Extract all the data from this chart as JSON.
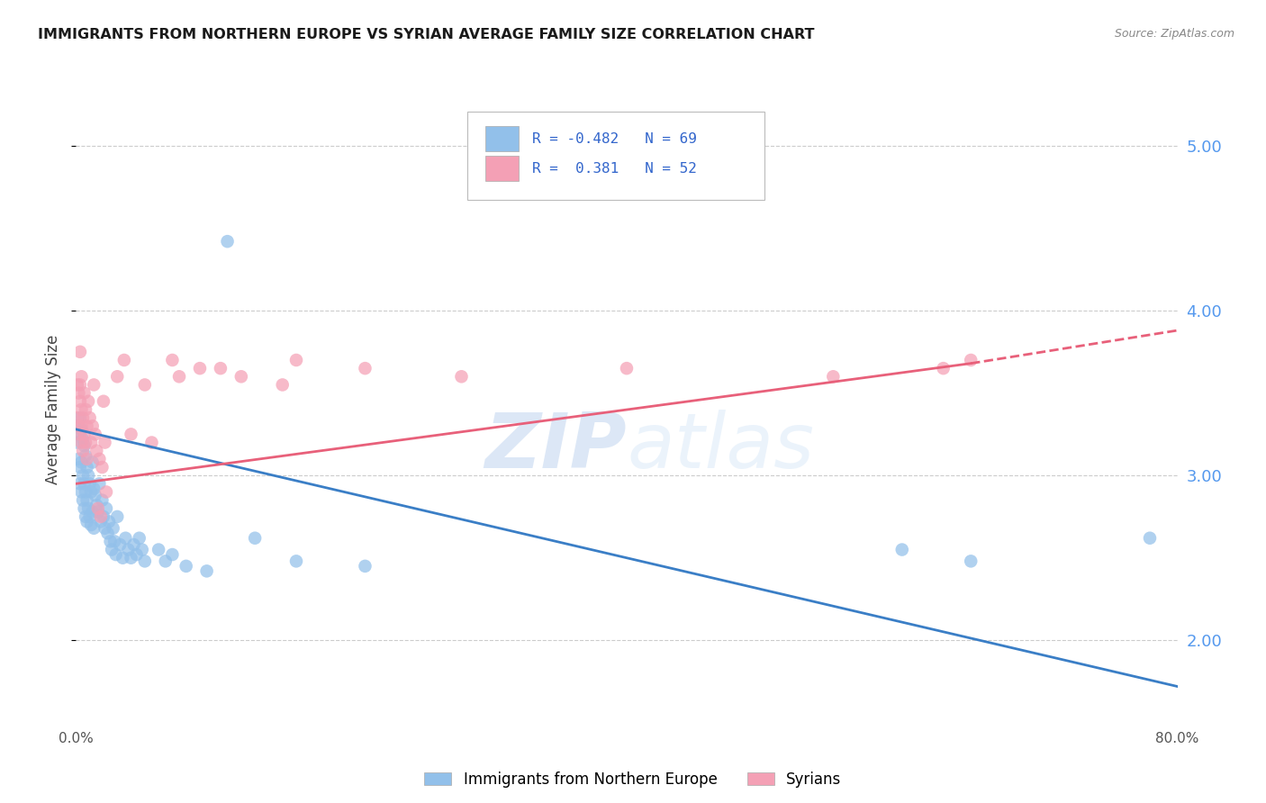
{
  "title": "IMMIGRANTS FROM NORTHERN EUROPE VS SYRIAN AVERAGE FAMILY SIZE CORRELATION CHART",
  "source": "Source: ZipAtlas.com",
  "ylabel": "Average Family Size",
  "xlim": [
    0.0,
    0.8
  ],
  "ylim": [
    1.5,
    5.3
  ],
  "yticks_right": [
    2.0,
    3.0,
    4.0,
    5.0
  ],
  "blue_color": "#92C0EA",
  "pink_color": "#F4A0B5",
  "blue_line_color": "#3A7EC6",
  "pink_line_color": "#E8607A",
  "watermark_zip": "ZIP",
  "watermark_atlas": "atlas",
  "blue_scatter": [
    [
      0.001,
      3.3
    ],
    [
      0.001,
      3.2
    ],
    [
      0.002,
      3.25
    ],
    [
      0.002,
      3.1
    ],
    [
      0.003,
      3.35
    ],
    [
      0.003,
      3.05
    ],
    [
      0.003,
      2.95
    ],
    [
      0.004,
      3.28
    ],
    [
      0.004,
      3.08
    ],
    [
      0.004,
      2.9
    ],
    [
      0.005,
      3.22
    ],
    [
      0.005,
      3.0
    ],
    [
      0.005,
      2.85
    ],
    [
      0.006,
      3.18
    ],
    [
      0.006,
      2.95
    ],
    [
      0.006,
      2.8
    ],
    [
      0.007,
      3.12
    ],
    [
      0.007,
      2.9
    ],
    [
      0.007,
      2.75
    ],
    [
      0.008,
      3.05
    ],
    [
      0.008,
      2.85
    ],
    [
      0.008,
      2.72
    ],
    [
      0.009,
      3.0
    ],
    [
      0.009,
      2.8
    ],
    [
      0.01,
      2.95
    ],
    [
      0.01,
      2.75
    ],
    [
      0.011,
      2.9
    ],
    [
      0.011,
      2.7
    ],
    [
      0.012,
      3.08
    ],
    [
      0.012,
      2.78
    ],
    [
      0.013,
      2.92
    ],
    [
      0.013,
      2.68
    ],
    [
      0.014,
      2.88
    ],
    [
      0.015,
      2.82
    ],
    [
      0.016,
      2.78
    ],
    [
      0.017,
      2.95
    ],
    [
      0.018,
      2.72
    ],
    [
      0.019,
      2.85
    ],
    [
      0.02,
      2.75
    ],
    [
      0.021,
      2.68
    ],
    [
      0.022,
      2.8
    ],
    [
      0.023,
      2.65
    ],
    [
      0.024,
      2.72
    ],
    [
      0.025,
      2.6
    ],
    [
      0.026,
      2.55
    ],
    [
      0.027,
      2.68
    ],
    [
      0.028,
      2.6
    ],
    [
      0.029,
      2.52
    ],
    [
      0.03,
      2.75
    ],
    [
      0.032,
      2.58
    ],
    [
      0.034,
      2.5
    ],
    [
      0.036,
      2.62
    ],
    [
      0.038,
      2.55
    ],
    [
      0.04,
      2.5
    ],
    [
      0.042,
      2.58
    ],
    [
      0.044,
      2.52
    ],
    [
      0.046,
      2.62
    ],
    [
      0.048,
      2.55
    ],
    [
      0.05,
      2.48
    ],
    [
      0.06,
      2.55
    ],
    [
      0.065,
      2.48
    ],
    [
      0.07,
      2.52
    ],
    [
      0.08,
      2.45
    ],
    [
      0.095,
      2.42
    ],
    [
      0.11,
      4.42
    ],
    [
      0.13,
      2.62
    ],
    [
      0.16,
      2.48
    ],
    [
      0.21,
      2.45
    ],
    [
      0.6,
      2.55
    ],
    [
      0.65,
      2.48
    ],
    [
      0.78,
      2.62
    ]
  ],
  "pink_scatter": [
    [
      0.001,
      3.55
    ],
    [
      0.001,
      3.35
    ],
    [
      0.002,
      3.5
    ],
    [
      0.002,
      3.3
    ],
    [
      0.003,
      3.45
    ],
    [
      0.003,
      3.25
    ],
    [
      0.003,
      3.55
    ],
    [
      0.003,
      3.75
    ],
    [
      0.004,
      3.4
    ],
    [
      0.004,
      3.2
    ],
    [
      0.004,
      3.6
    ],
    [
      0.004,
      3.3
    ],
    [
      0.005,
      3.35
    ],
    [
      0.005,
      3.15
    ],
    [
      0.006,
      3.25
    ],
    [
      0.006,
      3.5
    ],
    [
      0.007,
      3.2
    ],
    [
      0.007,
      3.4
    ],
    [
      0.008,
      3.3
    ],
    [
      0.008,
      3.1
    ],
    [
      0.009,
      3.45
    ],
    [
      0.01,
      3.35
    ],
    [
      0.011,
      3.2
    ],
    [
      0.012,
      3.3
    ],
    [
      0.013,
      3.55
    ],
    [
      0.014,
      3.25
    ],
    [
      0.015,
      3.15
    ],
    [
      0.016,
      2.8
    ],
    [
      0.017,
      3.1
    ],
    [
      0.018,
      2.75
    ],
    [
      0.019,
      3.05
    ],
    [
      0.02,
      3.45
    ],
    [
      0.021,
      3.2
    ],
    [
      0.022,
      2.9
    ],
    [
      0.03,
      3.6
    ],
    [
      0.035,
      3.7
    ],
    [
      0.04,
      3.25
    ],
    [
      0.05,
      3.55
    ],
    [
      0.055,
      3.2
    ],
    [
      0.07,
      3.7
    ],
    [
      0.075,
      3.6
    ],
    [
      0.09,
      3.65
    ],
    [
      0.105,
      3.65
    ],
    [
      0.12,
      3.6
    ],
    [
      0.15,
      3.55
    ],
    [
      0.16,
      3.7
    ],
    [
      0.21,
      3.65
    ],
    [
      0.28,
      3.6
    ],
    [
      0.4,
      3.65
    ],
    [
      0.55,
      3.6
    ],
    [
      0.63,
      3.65
    ],
    [
      0.65,
      3.7
    ]
  ],
  "blue_line": {
    "x0": 0.0,
    "y0": 3.28,
    "x1": 0.8,
    "y1": 1.72
  },
  "pink_line_solid": {
    "x0": 0.0,
    "y0": 2.95,
    "x1": 0.65,
    "y1": 3.68
  },
  "pink_line_dashed": {
    "x0": 0.65,
    "y0": 3.68,
    "x1": 0.8,
    "y1": 3.88
  }
}
